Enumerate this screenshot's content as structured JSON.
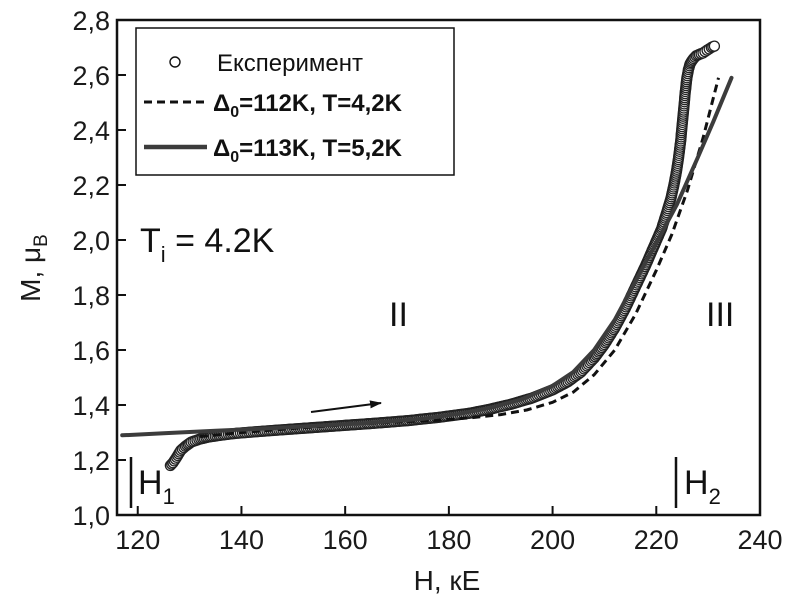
{
  "chart_data": {
    "type": "line",
    "xlabel": "H, кЕ",
    "ylabel": {
      "main": "M, μ",
      "sub": "B"
    },
    "xlim": [
      116,
      240
    ],
    "ylim": [
      1.0,
      2.8
    ],
    "x_ticks": [
      120,
      140,
      160,
      180,
      200,
      220,
      240
    ],
    "x_tick_labels": [
      "120",
      "140",
      "160",
      "180",
      "200",
      "220",
      "240"
    ],
    "y_ticks": [
      1.0,
      1.2,
      1.4,
      1.6,
      1.8,
      2.0,
      2.2,
      2.4,
      2.6,
      2.8
    ],
    "y_tick_labels": [
      "1,0",
      "1,2",
      "1,4",
      "1,6",
      "1,8",
      "2,0",
      "2,2",
      "2,4",
      "2,6",
      "2,8"
    ],
    "grid": false,
    "legend": {
      "placement": "top-left",
      "entries": [
        {
          "marker": "circle",
          "text": "Експеримент"
        },
        {
          "marker": "dashed",
          "prefix": "Δ",
          "sub": "0",
          "text": "=112K, T=4,2K"
        },
        {
          "marker": "solid",
          "prefix": "Δ",
          "sub": "0",
          "text": "=113K, T=5,2K"
        }
      ]
    },
    "annotations": {
      "ti": {
        "main": "T",
        "sub": "i",
        "rest": " = 4.2K"
      },
      "region2": "II",
      "region3": "III",
      "h1": {
        "main": "H",
        "sub": "1"
      },
      "h2": {
        "main": "H",
        "sub": "2"
      }
    },
    "series": [
      {
        "marker": "circle",
        "x": [
          126.3,
          126.8,
          127.5,
          128.3,
          129.2,
          130.3,
          131.8,
          133.5,
          136.0,
          139.0,
          143.0,
          148.0,
          154.0,
          160.0,
          166.0,
          172.0,
          178.0,
          184.0,
          188.0,
          192.0,
          196.0,
          200.0,
          203.0,
          205.5,
          208.0,
          210.0,
          212.0,
          214.0,
          216.0,
          218.0,
          219.5,
          221.0,
          222.0,
          222.8,
          223.4,
          223.9,
          224.3,
          224.7,
          225.0,
          225.3,
          225.6,
          225.9,
          226.2,
          226.5,
          226.8,
          227.2,
          227.7,
          228.3,
          229.0,
          229.8,
          230.6,
          231.2
        ],
        "y": [
          1.18,
          1.19,
          1.21,
          1.235,
          1.25,
          1.265,
          1.275,
          1.283,
          1.29,
          1.297,
          1.303,
          1.31,
          1.318,
          1.326,
          1.334,
          1.343,
          1.355,
          1.37,
          1.385,
          1.403,
          1.425,
          1.455,
          1.485,
          1.52,
          1.57,
          1.62,
          1.68,
          1.75,
          1.83,
          1.91,
          1.975,
          2.04,
          2.1,
          2.15,
          2.2,
          2.25,
          2.3,
          2.36,
          2.42,
          2.48,
          2.54,
          2.59,
          2.62,
          2.64,
          2.65,
          2.66,
          2.67,
          2.675,
          2.68,
          2.69,
          2.7,
          2.705
        ]
      },
      {
        "marker": "dashed",
        "x": [
          132.0,
          140.0,
          150.0,
          160.0,
          170.0,
          178.0,
          184.0,
          190.0,
          195.0,
          200.0,
          204.0,
          208.0,
          212.0,
          216.0,
          220.0,
          223.0,
          226.0,
          229.0,
          232.0
        ],
        "y": [
          1.285,
          1.3,
          1.315,
          1.328,
          1.338,
          1.345,
          1.353,
          1.365,
          1.382,
          1.41,
          1.447,
          1.51,
          1.6,
          1.73,
          1.89,
          2.02,
          2.18,
          2.37,
          2.59
        ]
      },
      {
        "marker": "solid",
        "x": [
          117.0,
          125.0,
          135.0,
          145.0,
          155.0,
          165.0,
          175.0,
          182.0,
          188.0,
          194.0,
          200.0,
          204.0,
          208.0,
          212.0,
          216.0,
          220.0,
          224.0,
          228.0,
          231.0,
          234.5
        ],
        "y": [
          1.29,
          1.297,
          1.306,
          1.315,
          1.325,
          1.335,
          1.35,
          1.368,
          1.39,
          1.42,
          1.47,
          1.52,
          1.6,
          1.71,
          1.85,
          1.99,
          2.13,
          2.3,
          2.43,
          2.59
        ]
      }
    ]
  }
}
